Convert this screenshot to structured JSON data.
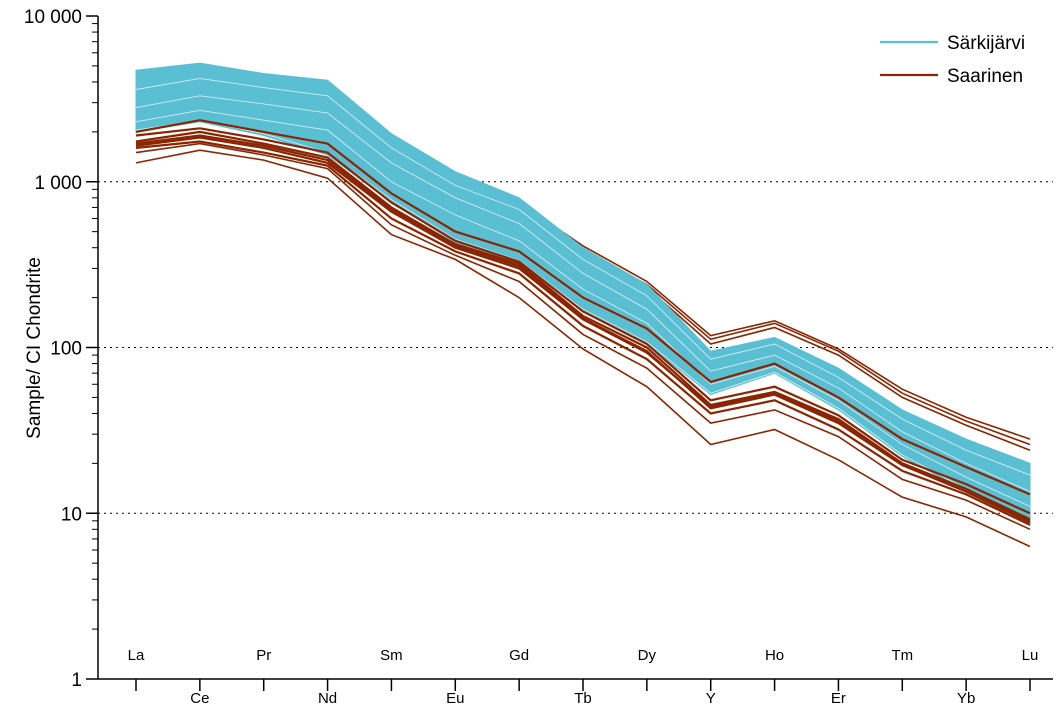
{
  "chart_data": {
    "type": "line",
    "title": "",
    "xlabel": "",
    "ylabel": "Sample/ CI Chondrite",
    "y_scale": "log",
    "ylim": [
      1,
      10000
    ],
    "y_ticks": [
      {
        "value": 1,
        "label": "1"
      },
      {
        "value": 10,
        "label": "10"
      },
      {
        "value": 100,
        "label": "100"
      },
      {
        "value": 1000,
        "label": "1 000"
      },
      {
        "value": 10000,
        "label": "10 000"
      }
    ],
    "grid": "horizontal dotted at 10, 100, 1 000",
    "legend_position": "top-right",
    "categories": [
      "La",
      "Ce",
      "Pr",
      "Nd",
      "Sm",
      "Eu",
      "Gd",
      "Tb",
      "Dy",
      "Y",
      "Ho",
      "Er",
      "Tm",
      "Yb",
      "Lu"
    ],
    "series": [
      {
        "name": "Särkijärvi",
        "color": "#5bbfd3",
        "envelope": {
          "upper": [
            4700,
            5200,
            4500,
            4100,
            1950,
            1150,
            800,
            400,
            240,
            95,
            115,
            75,
            42,
            28,
            20
          ],
          "lower": [
            2000,
            2300,
            1900,
            1450,
            750,
            430,
            320,
            165,
            105,
            52,
            70,
            42,
            22,
            13.5,
            8.5
          ]
        },
        "lines": [
          [
            4600,
            5100,
            4450,
            4050,
            1900,
            1120,
            790,
            390,
            235,
            92,
            112,
            73,
            41,
            27,
            19
          ],
          [
            3600,
            4200,
            3700,
            3300,
            1600,
            950,
            680,
            340,
            205,
            85,
            105,
            66,
            37,
            24,
            17
          ],
          [
            3200,
            3700,
            3300,
            2900,
            1450,
            880,
            620,
            310,
            190,
            78,
            98,
            62,
            34,
            22,
            15
          ],
          [
            2800,
            3300,
            2950,
            2600,
            1300,
            800,
            560,
            280,
            170,
            72,
            90,
            57,
            31,
            20,
            13.5
          ],
          [
            2500,
            3000,
            2600,
            2300,
            1150,
            720,
            500,
            255,
            155,
            66,
            83,
            52,
            28,
            18,
            12
          ],
          [
            2300,
            2700,
            2350,
            2050,
            1000,
            630,
            440,
            225,
            140,
            60,
            77,
            48,
            26,
            16.5,
            11
          ],
          [
            2100,
            2450,
            2100,
            1750,
            870,
            530,
            380,
            195,
            120,
            56,
            73,
            45,
            24,
            15,
            10
          ],
          [
            2050,
            2350,
            1950,
            1500,
            780,
            450,
            335,
            170,
            108,
            53,
            71,
            43,
            22.5,
            14,
            9
          ]
        ]
      },
      {
        "name": "Saarinen",
        "color": "#8b2500",
        "envelope": {
          "upper": [
            4500,
            5000,
            4400,
            3900,
            1800,
            1050,
            750,
            410,
            250,
            118,
            145,
            98,
            56,
            38,
            28
          ],
          "lower": [
            1300,
            1550,
            1350,
            1050,
            480,
            340,
            200,
            98,
            58,
            26,
            32,
            21,
            12.5,
            9.5,
            6.3
          ]
        },
        "lines": [
          [
            4500,
            5000,
            4400,
            3900,
            1800,
            1050,
            750,
            410,
            250,
            118,
            145,
            98,
            56,
            38,
            28
          ],
          [
            3700,
            4100,
            3500,
            3200,
            1650,
            1000,
            700,
            380,
            240,
            112,
            140,
            95,
            53,
            36,
            26
          ],
          [
            3000,
            3600,
            3100,
            2700,
            1500,
            930,
            650,
            360,
            230,
            105,
            132,
            90,
            50,
            34,
            24
          ],
          [
            2000,
            2350,
            2000,
            1700,
            850,
            500,
            380,
            200,
            130,
            62,
            80,
            50,
            28,
            19,
            13
          ],
          [
            1900,
            2100,
            1800,
            1500,
            750,
            440,
            330,
            165,
            105,
            48,
            58,
            39,
            21,
            15,
            10
          ],
          [
            1750,
            2000,
            1700,
            1400,
            700,
            420,
            320,
            155,
            100,
            45,
            54,
            37,
            20,
            14,
            9
          ],
          [
            1700,
            1900,
            1650,
            1350,
            680,
            410,
            310,
            150,
            95,
            43,
            52,
            35,
            19.5,
            13.5,
            8.8
          ],
          [
            1650,
            1850,
            1600,
            1300,
            660,
            400,
            300,
            148,
            93,
            44,
            53,
            36,
            20,
            14,
            9.2
          ],
          [
            1600,
            1750,
            1500,
            1250,
            600,
            380,
            280,
            135,
            85,
            40,
            48,
            32,
            18,
            13,
            8.5
          ],
          [
            1500,
            1700,
            1450,
            1200,
            550,
            360,
            250,
            120,
            75,
            35,
            42,
            29,
            16,
            12,
            8
          ],
          [
            1300,
            1550,
            1350,
            1050,
            480,
            340,
            200,
            98,
            58,
            26,
            32,
            21,
            12.5,
            9.5,
            6.3
          ]
        ]
      }
    ]
  }
}
